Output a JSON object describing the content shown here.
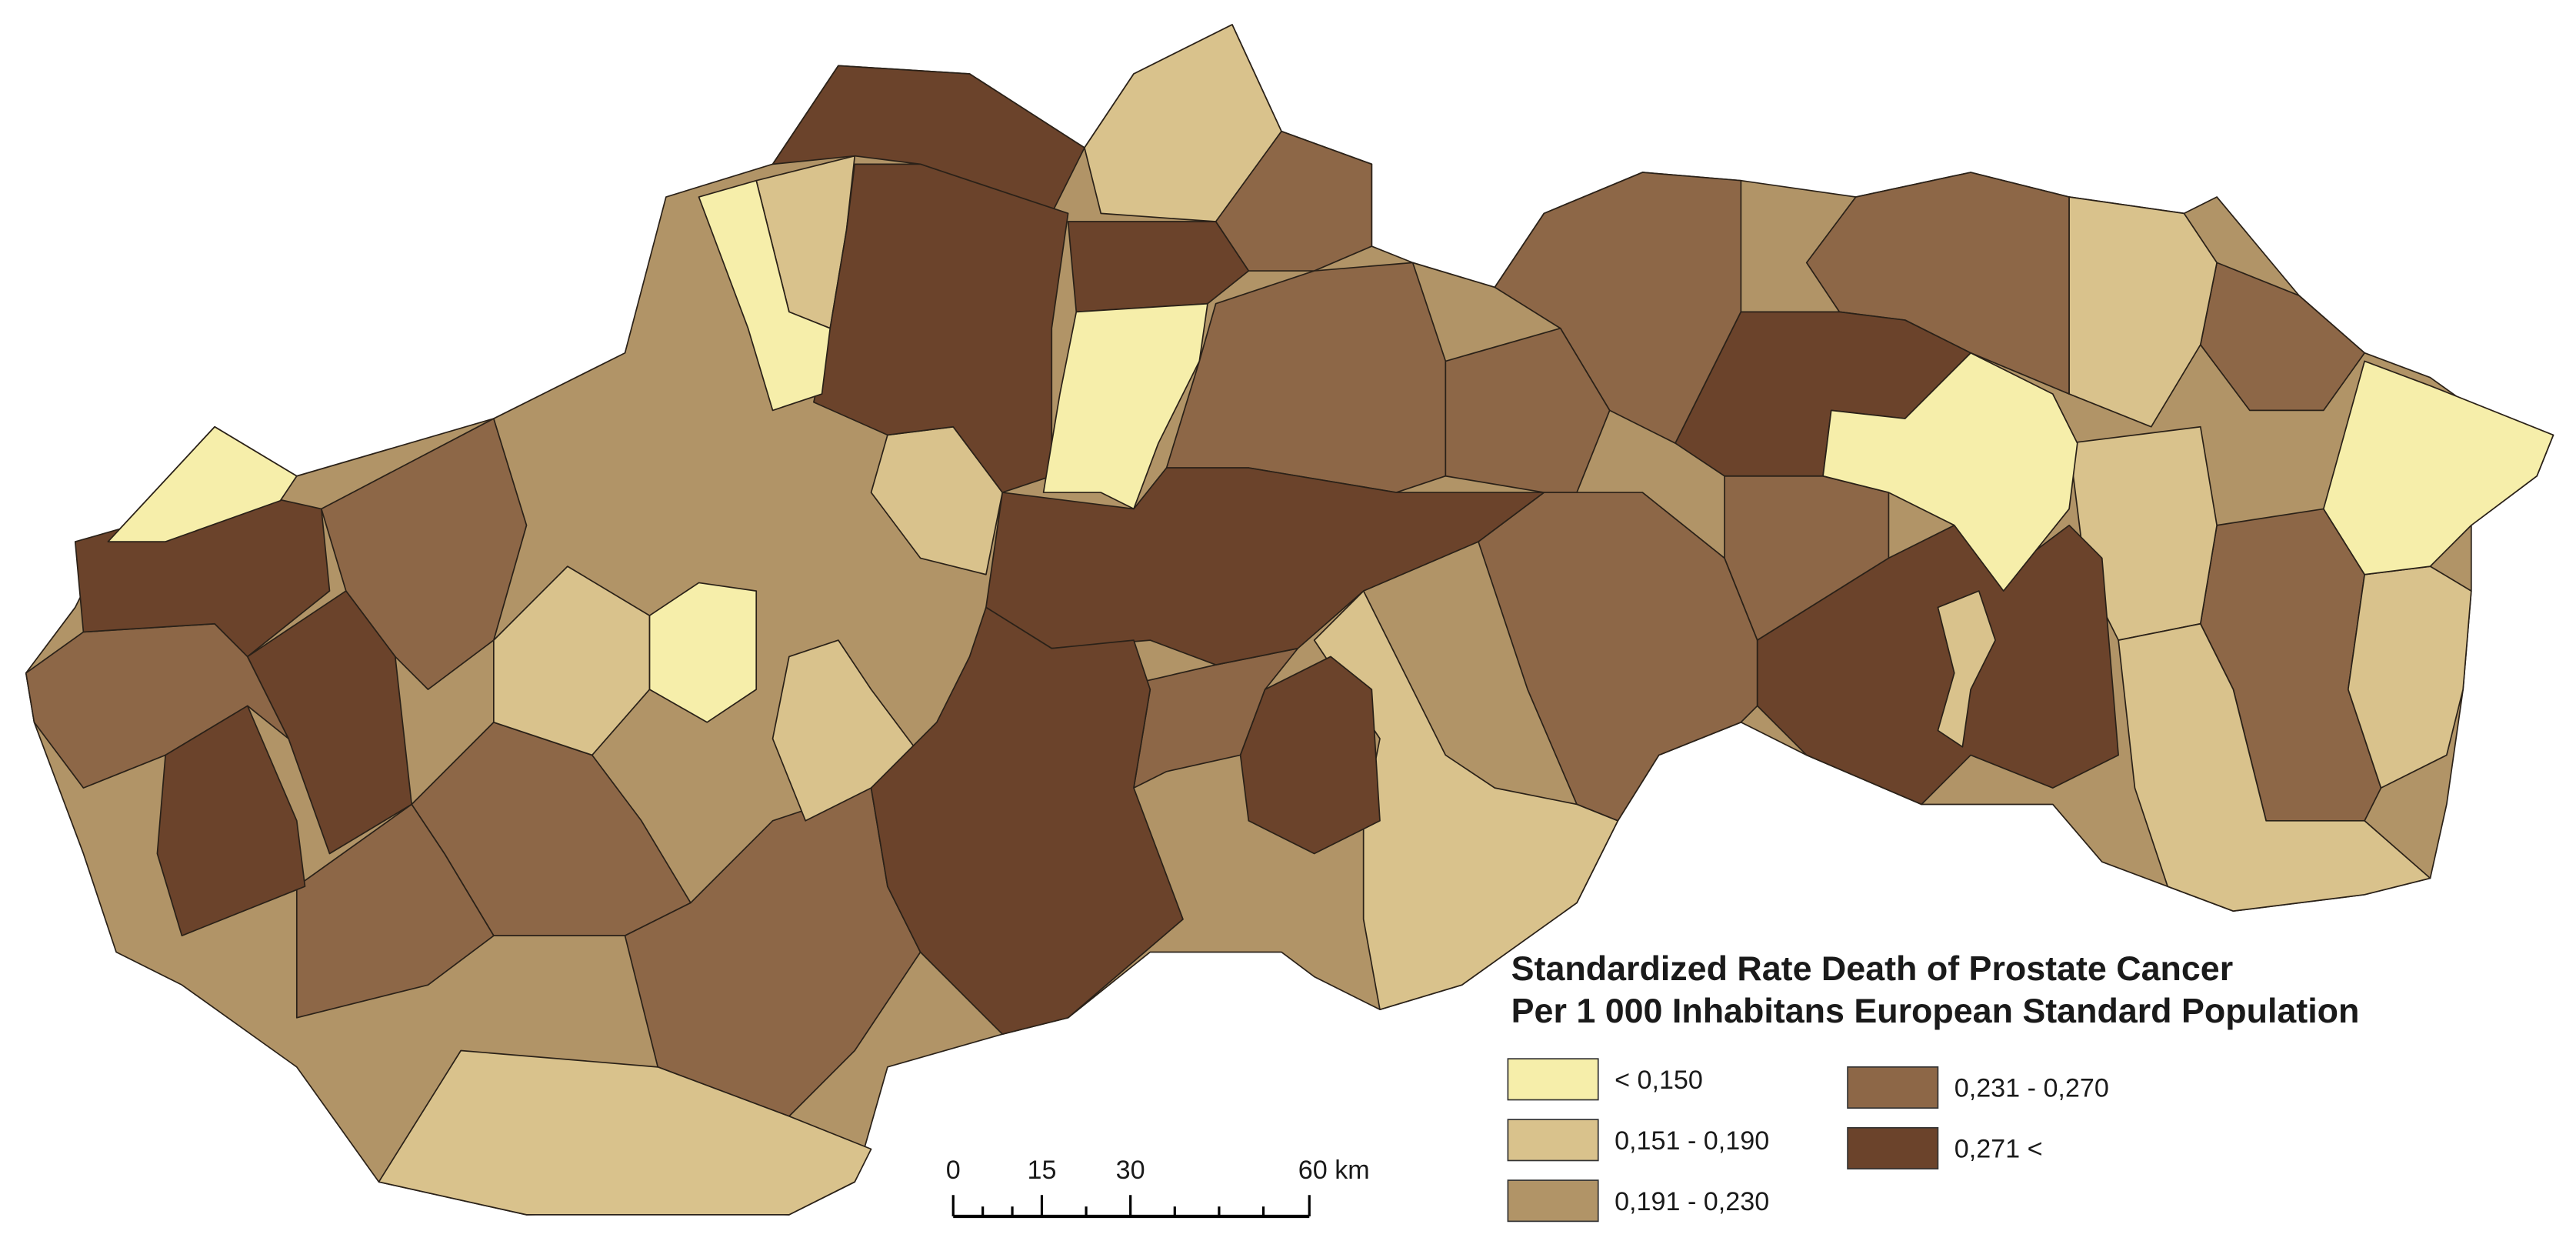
{
  "legend": {
    "title": [
      "Standardized Rate Death of Prostate Cancer",
      "Per 1 000 Inhabitans European Standard Population"
    ],
    "items": [
      {
        "label": "< 0,150",
        "color": "#f6eeaa"
      },
      {
        "label": "0,151 - 0,190",
        "color": "#d9c28c"
      },
      {
        "label": "0,191 - 0,230",
        "color": "#b19467"
      },
      {
        "label": "0,231 - 0,270",
        "color": "#8d6747"
      },
      {
        "label": "0,271 <",
        "color": "#6b432b"
      }
    ]
  },
  "scale_bar": {
    "labels": [
      "0",
      "15",
      "30",
      "60 km"
    ]
  }
}
